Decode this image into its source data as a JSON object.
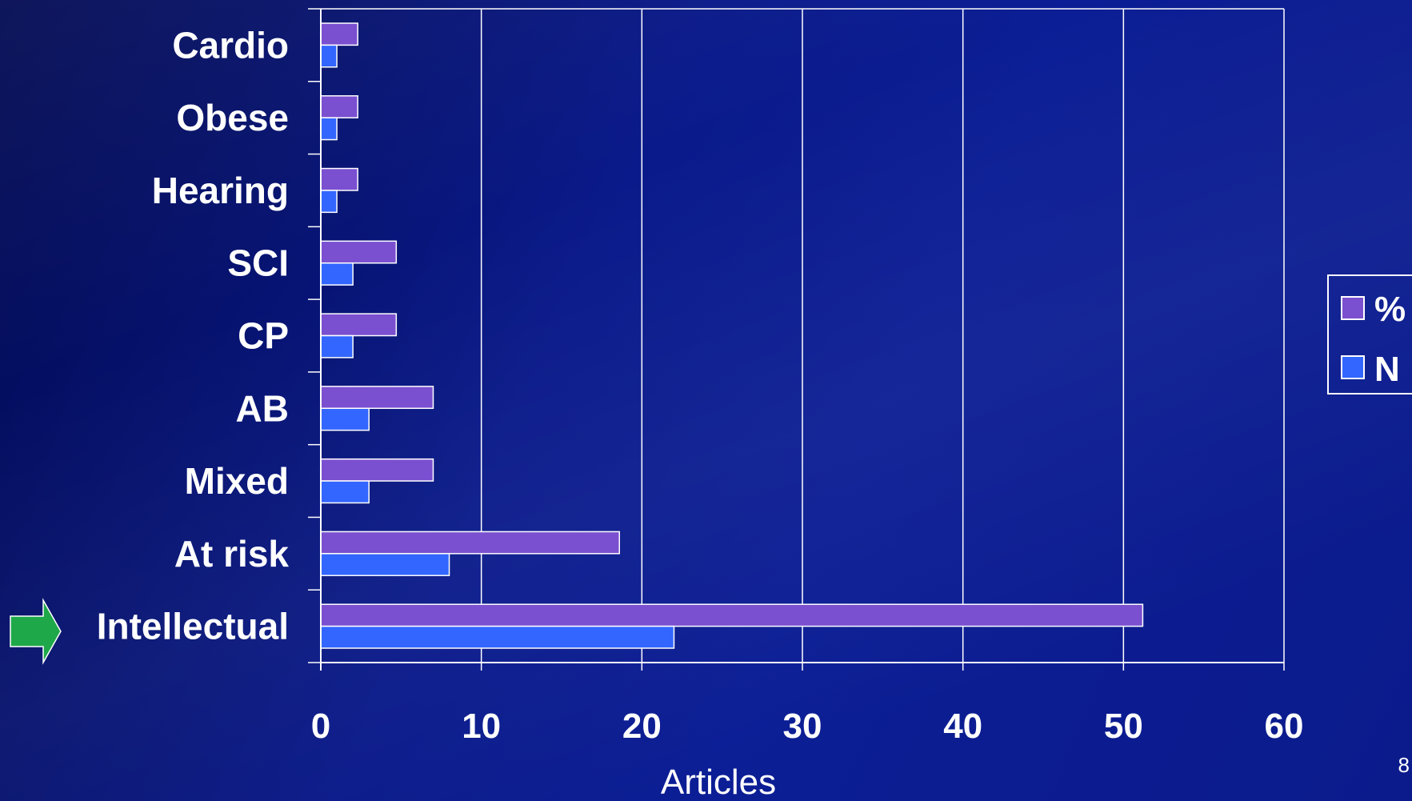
{
  "chart_data": {
    "type": "bar",
    "orientation": "horizontal",
    "categories": [
      "Cardio",
      "Obese",
      "Hearing",
      "SCI",
      "CP",
      "AB",
      "Mixed",
      "At risk",
      "Intellectual"
    ],
    "series": [
      {
        "name": "%",
        "color": "#7a4fd0",
        "values": [
          2.3,
          2.3,
          2.3,
          4.7,
          4.7,
          7.0,
          7.0,
          18.6,
          51.2
        ]
      },
      {
        "name": "N",
        "color": "#3366ff",
        "values": [
          1,
          1,
          1,
          2,
          2,
          3,
          3,
          8,
          22
        ]
      }
    ],
    "xlabel": "Articles",
    "xlim": [
      0,
      60
    ],
    "xticks": [
      "0",
      "10",
      "20",
      "30",
      "40",
      "50",
      "60"
    ],
    "grid": true,
    "legend_position": "right",
    "highlight_category": "Intellectual",
    "highlight_icon": "green-arrow-right-icon",
    "highlight_color": "#1fa84a"
  },
  "slide_number": "8"
}
